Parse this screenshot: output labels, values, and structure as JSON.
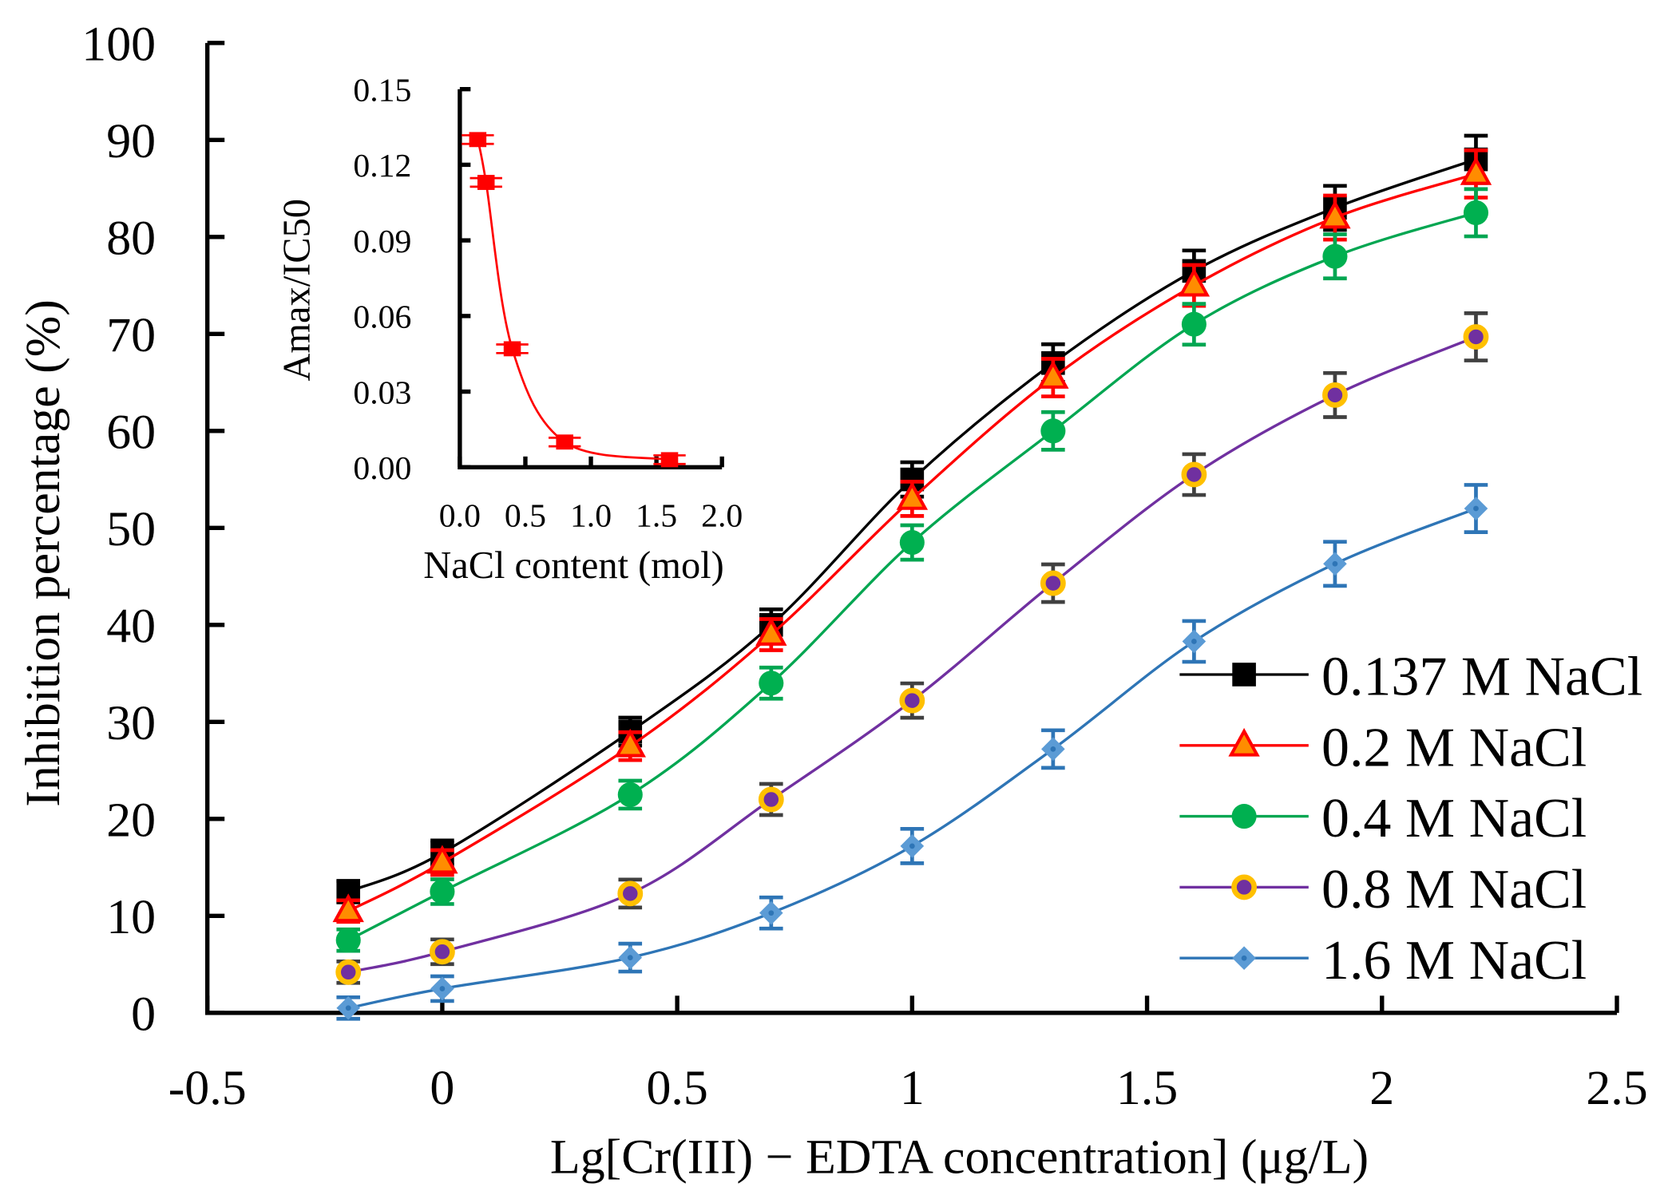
{
  "chart_data": [
    {
      "type": "line",
      "title": "",
      "xlabel": "Lg[Cr(III) − EDTA concentration] (μg/L)",
      "ylabel": "Inhibition percentage (%)",
      "xlim": [
        -0.5,
        2.5
      ],
      "ylim": [
        0,
        100
      ],
      "xticks": [
        "-0.5",
        "0",
        "0.5",
        "1",
        "1.5",
        "2",
        "2.5"
      ],
      "yticks": [
        "0",
        "10",
        "20",
        "30",
        "40",
        "50",
        "60",
        "70",
        "80",
        "90",
        "100"
      ],
      "grid": false,
      "legend_position": "bottom-right",
      "x": [
        -0.2,
        0,
        0.4,
        0.7,
        1,
        1.3,
        1.6,
        1.9,
        2.2
      ],
      "series": [
        {
          "name": "0.137 M NaCl",
          "marker": "square",
          "color": "#000000",
          "fill": "#000000",
          "values": [
            12.5,
            16.5,
            29,
            40,
            55,
            67,
            76.5,
            83,
            88
          ]
        },
        {
          "name": "0.2 M NaCl",
          "marker": "triangle",
          "color": "#ff0000",
          "fill": "#ff8c00",
          "values": [
            10.5,
            15.5,
            27.5,
            39,
            53,
            65.5,
            75,
            82,
            86.5
          ]
        },
        {
          "name": "0.4 M NaCl",
          "marker": "circle",
          "color": "#00a651",
          "fill": "#00b050",
          "values": [
            7.5,
            12.5,
            22.5,
            34,
            48.5,
            60,
            71,
            78,
            82.5
          ]
        },
        {
          "name": "0.8 M NaCl",
          "marker": "ring",
          "color": "#7030a0",
          "fill": "#ffc000",
          "values": [
            4.2,
            6.3,
            12.3,
            22,
            32.2,
            44.3,
            55.5,
            63.7,
            69.7
          ]
        },
        {
          "name": "1.6 M NaCl",
          "marker": "diamond",
          "color": "#2e75b6",
          "fill": "#5b9bd5",
          "values": [
            0.5,
            2.5,
            5.7,
            10.3,
            17.2,
            27.2,
            38.3,
            46.3,
            52
          ]
        }
      ]
    },
    {
      "type": "line",
      "title": "",
      "xlabel": "NaCl content (mol)",
      "ylabel": "Amax/IC50",
      "xlim": [
        0,
        2.0
      ],
      "ylim": [
        0,
        0.15
      ],
      "xticks": [
        "0.0",
        "0.5",
        "1.0",
        "1.5",
        "2.0"
      ],
      "yticks": [
        "0.00",
        "0.03",
        "0.06",
        "0.09",
        "0.12",
        "0.15"
      ],
      "x": [
        0.137,
        0.2,
        0.4,
        0.8,
        1.6
      ],
      "series": [
        {
          "name": "Amax/IC50",
          "color": "#ff0000",
          "values": [
            0.13,
            0.113,
            0.047,
            0.01,
            0.003
          ]
        }
      ]
    }
  ]
}
